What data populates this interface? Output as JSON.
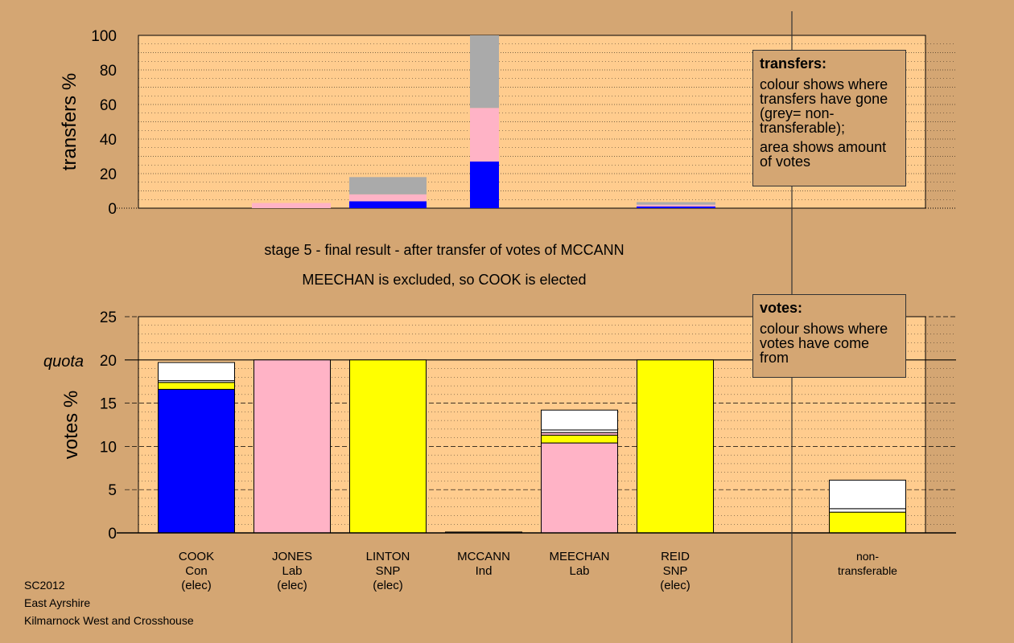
{
  "chart_data": [
    {
      "type": "bar",
      "ylabel": "transfers %",
      "ylim": [
        0,
        100
      ],
      "yticks": [
        "0",
        "20",
        "40",
        "60",
        "80",
        "100"
      ],
      "legend": {
        "title": "transfers:",
        "lines": [
          "colour shows where transfers have gone (grey= non-transferable);",
          "area shows amount of votes"
        ]
      },
      "bars": [
        {
          "label": "COOK",
          "segments": []
        },
        {
          "label": "JONES",
          "segments": [
            {
              "color": "#FFB3C6",
              "value": 3
            }
          ]
        },
        {
          "label": "LINTON",
          "segments": [
            {
              "color": "#0000FF",
              "value": 4
            },
            {
              "color": "#FFB3C6",
              "value": 4
            },
            {
              "color": "#AAAAAA",
              "value": 10
            }
          ]
        },
        {
          "label": "MCCANN",
          "segments": [
            {
              "color": "#0000FF",
              "value": 27
            },
            {
              "color": "#FFB3C6",
              "value": 31
            },
            {
              "color": "#AAAAAA",
              "value": 42
            }
          ]
        },
        {
          "label": "MEECHAN",
          "segments": []
        },
        {
          "label": "REID",
          "segments": [
            {
              "color": "#0000FF",
              "value": 1
            },
            {
              "color": "#FFB3C6",
              "value": 1
            },
            {
              "color": "#AAAAAA",
              "value": 1.5
            }
          ]
        }
      ]
    },
    {
      "type": "bar",
      "ylabel": "votes %",
      "ylim": [
        0,
        25
      ],
      "yticks": [
        "0",
        "5",
        "10",
        "15",
        "20",
        "25"
      ],
      "quota": 20,
      "quota_label": "quota",
      "legend": {
        "title": "votes:",
        "lines": [
          "colour shows where votes have come from"
        ]
      },
      "bars": [
        {
          "lines": [
            "COOK",
            "Con",
            "(elec)"
          ],
          "segments": [
            {
              "color": "#0000FF",
              "value": 16.6
            },
            {
              "color": "#FFFF00",
              "value": 0.8
            },
            {
              "color": "#FFFFFF",
              "value": 0.2
            },
            {
              "color": "#FFFFFF",
              "value": 2.1
            }
          ]
        },
        {
          "lines": [
            "JONES",
            "Lab",
            "(elec)"
          ],
          "segments": [
            {
              "color": "#FFB3C6",
              "value": 20
            }
          ]
        },
        {
          "lines": [
            "LINTON",
            "SNP",
            "(elec)"
          ],
          "segments": [
            {
              "color": "#FFFF00",
              "value": 20
            }
          ]
        },
        {
          "lines": [
            "MCCANN",
            "Ind"
          ],
          "segments": [
            {
              "color": "#FFFFFF",
              "value": 0.1
            }
          ]
        },
        {
          "lines": [
            "MEECHAN",
            "Lab"
          ],
          "segments": [
            {
              "color": "#FFB3C6",
              "value": 10.4
            },
            {
              "color": "#FFFF00",
              "value": 0.9
            },
            {
              "color": "#FFB3C6",
              "value": 0.3
            },
            {
              "color": "#FFFFFF",
              "value": 0.3
            },
            {
              "color": "#FFFFFF",
              "value": 2.3
            }
          ]
        },
        {
          "lines": [
            "REID",
            "SNP",
            "(elec)"
          ],
          "segments": [
            {
              "color": "#FFFF00",
              "value": 20
            }
          ]
        },
        {
          "lines": [
            "non-",
            "transferable"
          ],
          "segments": [
            {
              "color": "#FFFF00",
              "value": 2.4
            },
            {
              "color": "#FFFFFF",
              "value": 0.4
            },
            {
              "color": "#FFFFFF",
              "value": 3.3
            }
          ]
        }
      ]
    }
  ],
  "stage_text": "stage 5 - final result - after transfer of votes of MCCANN",
  "result_text": "MEECHAN is excluded, so COOK is elected",
  "source": [
    "SC2012",
    "East Ayrshire",
    "Kilmarnock West and Crosshouse"
  ],
  "colors": {
    "background": "#D4A673",
    "plot_area": "#FFCC8E",
    "con": "#0000FF",
    "lab": "#FFB3C6",
    "snp": "#FFFF00",
    "nontransferable": "#AAAAAA"
  }
}
